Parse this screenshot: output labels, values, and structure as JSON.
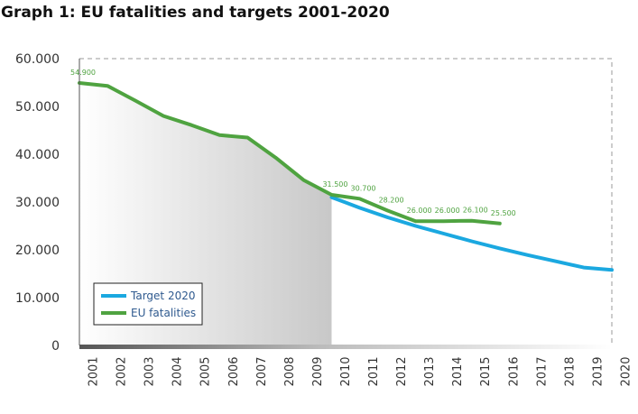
{
  "title": "Graph 1: EU fatalities and targets 2001-2020",
  "chart_data": {
    "type": "line",
    "ylim": [
      0,
      60000
    ],
    "y_ticks": [
      0,
      10000,
      20000,
      30000,
      40000,
      50000,
      60000
    ],
    "y_tick_labels": [
      "0",
      "10.000",
      "20.000",
      "30.000",
      "40.000",
      "50.000",
      "60.000"
    ],
    "x_ticks": [
      "2001",
      "2002",
      "2003",
      "2004",
      "2005",
      "2006",
      "2007",
      "2008",
      "2009",
      "2010",
      "2011",
      "2012",
      "2013",
      "2014",
      "2015",
      "2016",
      "2017",
      "2018",
      "2019",
      "2020"
    ],
    "legend_position": "bottom-left",
    "series": [
      {
        "name": "Target 2020",
        "color": "#1ba8e0",
        "x": [
          2010,
          2011,
          2012,
          2013,
          2014,
          2015,
          2016,
          2017,
          2018,
          2019,
          2020
        ],
        "values": [
          31000,
          28800,
          26800,
          25000,
          23400,
          21800,
          20300,
          18900,
          17600,
          16300,
          15800
        ]
      },
      {
        "name": "EU fatalities",
        "color": "#4fa340",
        "x": [
          2001,
          2002,
          2003,
          2004,
          2005,
          2006,
          2007,
          2008,
          2009,
          2010,
          2011,
          2012,
          2013,
          2014,
          2015,
          2016
        ],
        "values": [
          54900,
          54300,
          51200,
          48000,
          46100,
          44000,
          43500,
          39300,
          34600,
          31500,
          30700,
          28200,
          26000,
          26000,
          26100,
          25500
        ]
      }
    ],
    "data_labels": [
      {
        "year": 2001,
        "value": 54900,
        "text": "54.900"
      },
      {
        "year": 2010,
        "value": 31500,
        "text": "31.500"
      },
      {
        "year": 2011,
        "value": 30700,
        "text": "30.700"
      },
      {
        "year": 2012,
        "value": 28200,
        "text": "28.200"
      },
      {
        "year": 2013,
        "value": 26000,
        "text": "26.000"
      },
      {
        "year": 2014,
        "value": 26000,
        "text": "26.000"
      },
      {
        "year": 2015,
        "value": 26100,
        "text": "26.100"
      },
      {
        "year": 2016,
        "value": 25500,
        "text": "25.500"
      }
    ],
    "shaded_region": {
      "x_start": 2001,
      "x_end": 2010
    }
  }
}
